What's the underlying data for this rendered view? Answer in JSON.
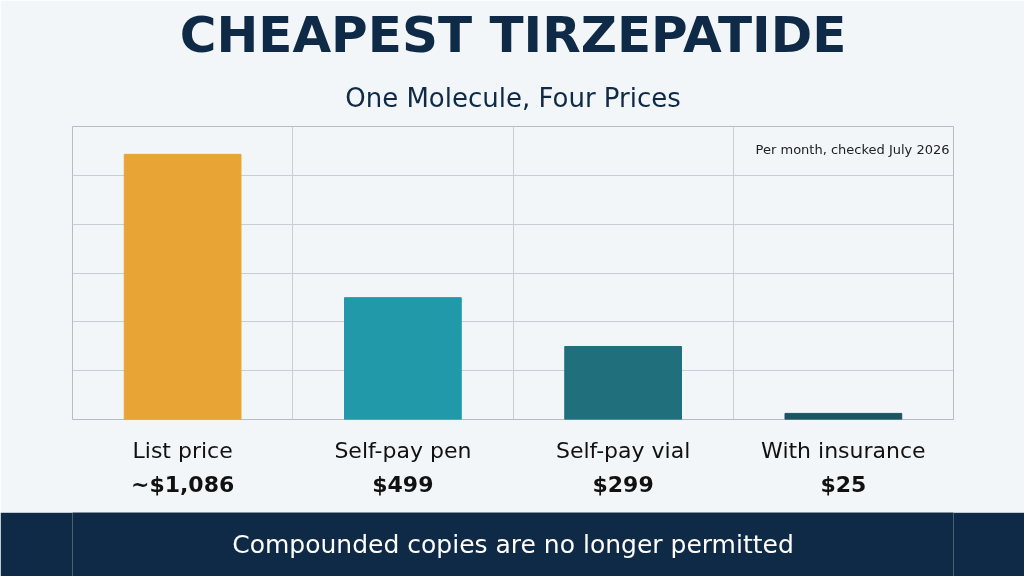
{
  "chart_data": {
    "type": "bar",
    "title": "CHEAPEST TIRZEPATIDE",
    "subtitle": "One Molecule, Four Prices",
    "categories": [
      "List price",
      "Self-pay pen",
      "Self-pay vial",
      "With insurance"
    ],
    "values": [
      1086,
      499,
      299,
      25
    ],
    "value_labels": [
      "~$1,086",
      "$499",
      "$299",
      "$25"
    ],
    "colors": [
      "#e8a535",
      "#2299a8",
      "#1f6f7d",
      "#1b5462"
    ],
    "ylim": [
      0,
      1200
    ],
    "yticks": [
      {
        "value": 0,
        "label": null
      },
      {
        "value": 200,
        "label": null
      },
      {
        "value": 400,
        "label": null
      },
      {
        "value": 600,
        "label": null
      },
      {
        "value": 800,
        "label": null
      },
      {
        "value": 1000,
        "label": null
      },
      {
        "value": 1200,
        "label": null
      }
    ],
    "tick_labels": "x",
    "grid": true,
    "annotations": [
      "Per month, checked July 2026",
      "Compounded copies are no longer permitted"
    ]
  }
}
